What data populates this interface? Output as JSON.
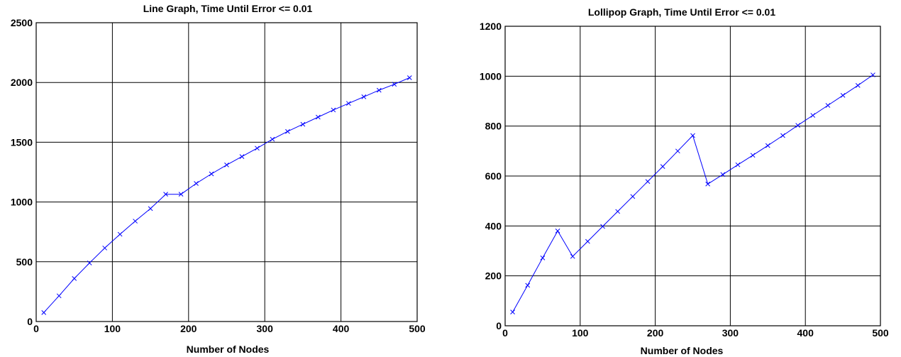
{
  "chart_data": [
    {
      "type": "line",
      "title": "Line Graph, Time Until Error <= 0.01",
      "xlabel": "Number of Nodes",
      "ylabel": "",
      "xlim": [
        0,
        500
      ],
      "ylim": [
        0,
        2500
      ],
      "xticks": [
        0,
        100,
        200,
        300,
        400,
        500
      ],
      "yticks": [
        0,
        500,
        1000,
        1500,
        2000,
        2500
      ],
      "grid": true,
      "marker": "x",
      "color": "#0000ff",
      "series": [
        {
          "x": [
            10,
            30,
            50,
            70,
            90,
            110,
            130,
            150,
            170,
            190,
            210,
            230,
            250,
            270,
            290,
            310,
            330,
            350,
            370,
            390,
            410,
            430,
            450,
            470,
            490
          ],
          "y": [
            75,
            215,
            360,
            490,
            615,
            730,
            840,
            945,
            1065,
            1065,
            1155,
            1235,
            1310,
            1380,
            1450,
            1525,
            1590,
            1650,
            1710,
            1770,
            1825,
            1880,
            1935,
            1985,
            2040
          ]
        }
      ]
    },
    {
      "type": "line",
      "title": "Lollipop Graph, Time Until Error <= 0.01",
      "xlabel": "Number of Nodes",
      "ylabel": "",
      "xlim": [
        0,
        500
      ],
      "ylim": [
        0,
        1200
      ],
      "xticks": [
        0,
        100,
        200,
        300,
        400,
        500
      ],
      "yticks": [
        0,
        200,
        400,
        600,
        800,
        1000,
        1200
      ],
      "grid": true,
      "marker": "x",
      "color": "#0000ff",
      "series": [
        {
          "x": [
            10,
            30,
            50,
            70,
            90,
            110,
            130,
            150,
            170,
            190,
            210,
            230,
            250,
            270,
            290,
            310,
            330,
            350,
            370,
            390,
            410,
            430,
            450,
            470,
            490
          ],
          "y": [
            55,
            162,
            272,
            380,
            278,
            338,
            398,
            458,
            518,
            578,
            638,
            700,
            762,
            568,
            606,
            645,
            683,
            722,
            762,
            803,
            843,
            883,
            923,
            963,
            1005
          ]
        }
      ]
    }
  ]
}
